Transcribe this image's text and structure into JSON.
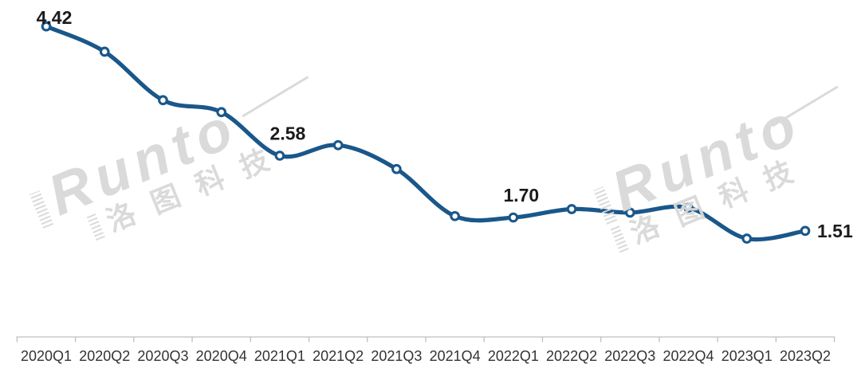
{
  "chart_data": {
    "type": "line",
    "title": "",
    "xlabel": "",
    "ylabel": "",
    "categories": [
      "2020Q1",
      "2020Q2",
      "2020Q3",
      "2020Q4",
      "2021Q1",
      "2021Q2",
      "2021Q3",
      "2021Q4",
      "2022Q1",
      "2022Q2",
      "2022Q3",
      "2022Q4",
      "2023Q1",
      "2023Q2"
    ],
    "values": [
      4.42,
      4.06,
      3.37,
      3.2,
      2.58,
      2.73,
      2.39,
      1.72,
      1.7,
      1.82,
      1.77,
      1.84,
      1.4,
      1.51
    ],
    "labeled_points": [
      {
        "index": 0,
        "text": "4.42",
        "placement": "above-close"
      },
      {
        "index": 4,
        "text": "2.58",
        "placement": "above"
      },
      {
        "index": 8,
        "text": "1.70",
        "placement": "above"
      },
      {
        "index": 13,
        "text": "1.51",
        "placement": "right"
      }
    ],
    "ylim": [
      0,
      4.8
    ],
    "grid": false,
    "legend": false,
    "line_color": "#1a578a",
    "marker_fill": "#ffffff",
    "label_color": "#1b1b1b",
    "axis_color": "#bfbfbf",
    "tick_label_color": "#333333"
  },
  "watermark": {
    "latin": "Runto",
    "cn": "洛图科技",
    "color": "#d9d9d9"
  }
}
